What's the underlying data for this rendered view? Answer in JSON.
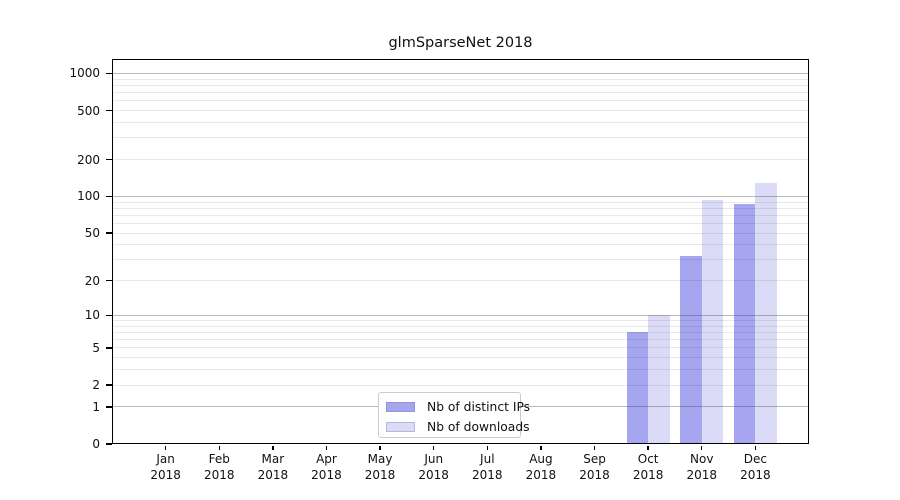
{
  "title": "glmSparseNet 2018",
  "colors": {
    "distinct_ips_bar": "#a5a5f0",
    "downloads_bar": "#dbdbf8",
    "major_gridline": "#b0b0b0",
    "minor_gridline": "#e8e8e8",
    "axis_frame": "#000000"
  },
  "legend": {
    "items": [
      {
        "label": "Nb of distinct IPs",
        "color": "#a5a5f0"
      },
      {
        "label": "Nb of downloads",
        "color": "#dbdbf8"
      }
    ]
  },
  "chart_data": {
    "type": "bar",
    "title": "glmSparseNet 2018",
    "categories": [
      "Jan",
      "Feb",
      "Mar",
      "Apr",
      "May",
      "Jun",
      "Jul",
      "Aug",
      "Sep",
      "Oct",
      "Nov",
      "Dec"
    ],
    "x_year_label": "2018",
    "series": [
      {
        "name": "Nb of distinct IPs",
        "color": "#a5a5f0",
        "values": [
          0,
          0,
          0,
          0,
          0,
          0,
          0,
          0,
          0,
          7,
          32,
          87
        ]
      },
      {
        "name": "Nb of downloads",
        "color": "#dbdbf8",
        "values": [
          0,
          0,
          0,
          0,
          0,
          0,
          0,
          0,
          0,
          10,
          93,
          129
        ]
      }
    ],
    "xlabel": "",
    "ylabel": "",
    "y_scale": "log1p",
    "y_ticks": [
      0,
      1,
      2,
      5,
      10,
      20,
      50,
      100,
      200,
      500,
      1000
    ],
    "y_major_gridlines": [
      1,
      10,
      100,
      1000
    ],
    "ylim": [
      0,
      1300
    ],
    "grid": "on",
    "legend_position": "bottom-center"
  }
}
